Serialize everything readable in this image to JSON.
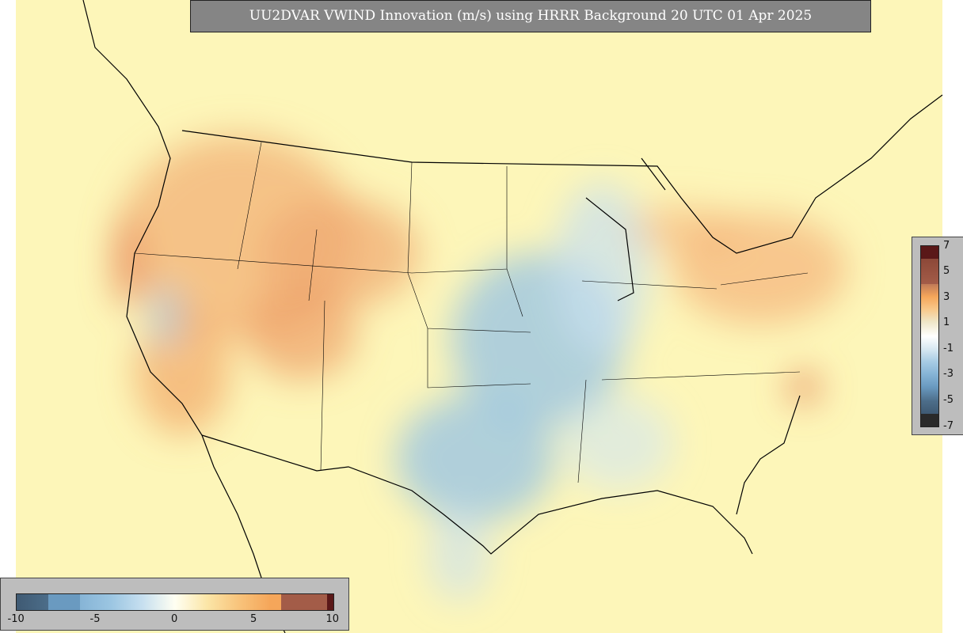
{
  "title": "UU2DVAR VWIND Innovation (m/s) using HRRR Background 20 UTC 01 Apr 2025",
  "colorbar_bottom": {
    "ticks": [
      -10,
      -5,
      0,
      5,
      10
    ]
  },
  "colorbar_right": {
    "ticks": [
      7,
      5,
      3,
      1,
      -1,
      -3,
      -5,
      -7
    ]
  }
}
